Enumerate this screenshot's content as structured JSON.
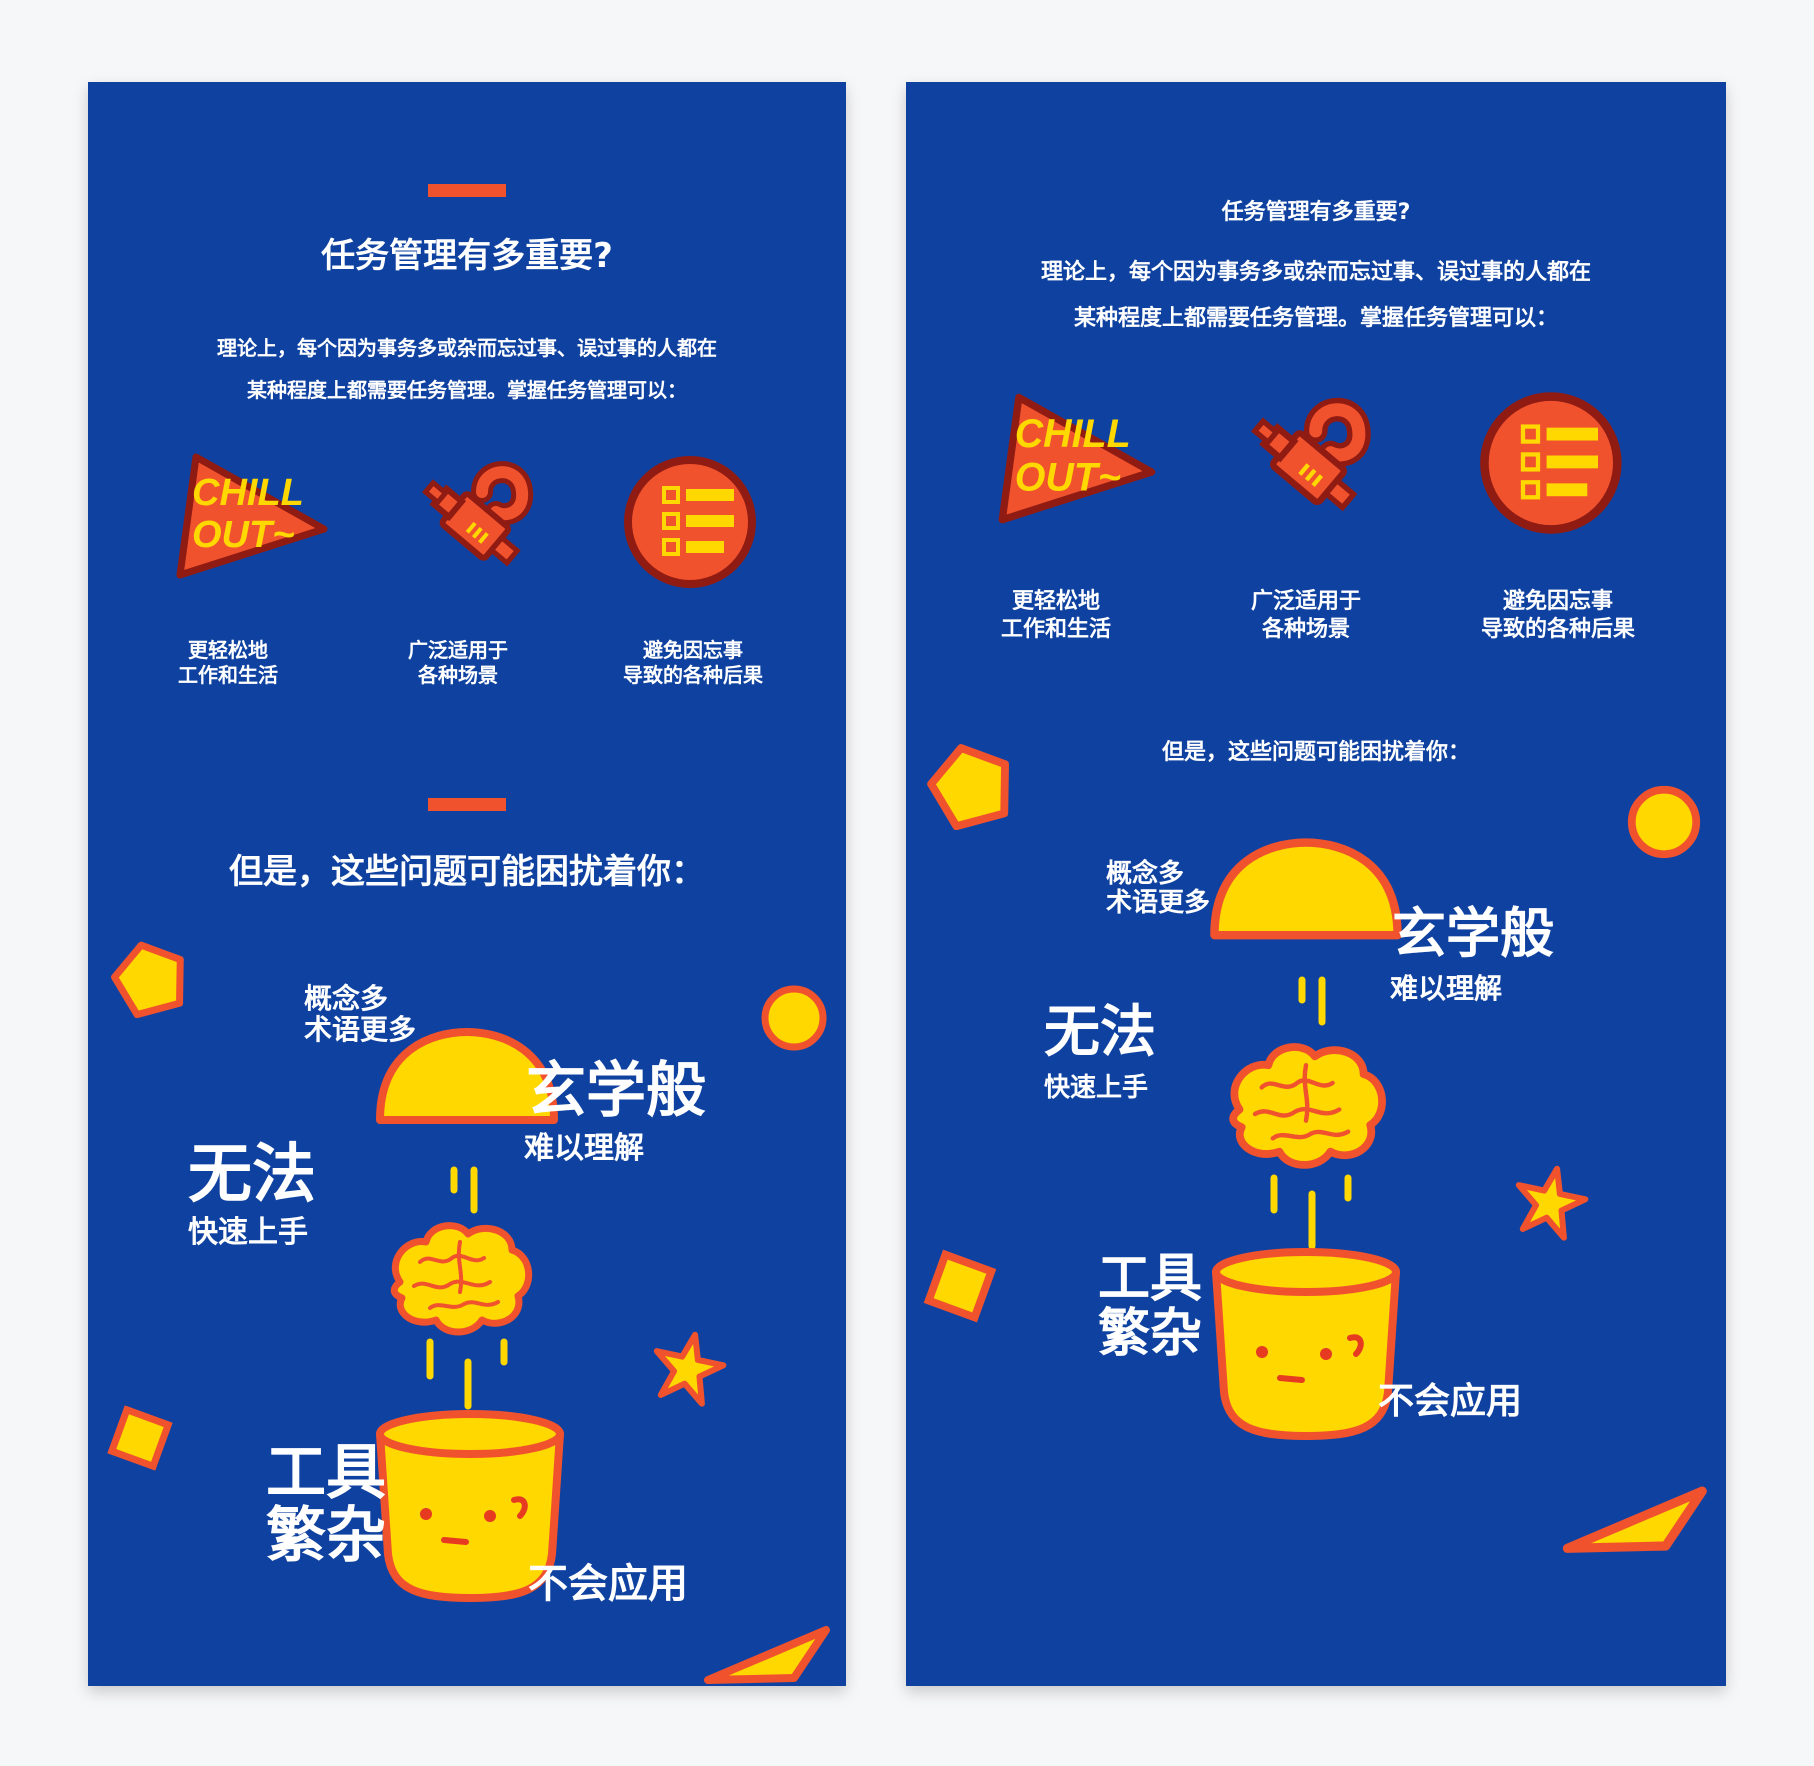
{
  "colors": {
    "panel_blue": "#0f42a0",
    "accent_red": "#f1522e",
    "accent_yellow": "#ffd800",
    "dark_red": "#8f1b12",
    "text_white": "#ffffff"
  },
  "section1": {
    "title": "任务管理有多重要?",
    "desc_line1": "理论上，每个因为事务多或杂而忘过事、误过事的人都在",
    "desc_line2": "某种程度上都需要任务管理。掌握任务管理可以："
  },
  "icons": [
    {
      "icon": "chill-out-icon",
      "line1": "更轻松地",
      "line2": "工作和生活"
    },
    {
      "icon": "plug-icon",
      "line1": "广泛适用于",
      "line2": "各种场景"
    },
    {
      "icon": "checklist-icon",
      "line1": "避免因忘事",
      "line2": "导致的各种后果"
    }
  ],
  "chill_text": {
    "line1": "CHILL",
    "line2": "OUT~"
  },
  "section2": {
    "title": "但是，这些问题可能困扰着你："
  },
  "problems": {
    "concepts_line1": "概念多",
    "concepts_line2": "术语更多",
    "mystic_big": "玄学般",
    "mystic_small": "难以理解",
    "nofast_big": "无法",
    "nofast_small": "快速上手",
    "tools_line1": "工具",
    "tools_line2": "繁杂",
    "cantuse": "不会应用"
  }
}
